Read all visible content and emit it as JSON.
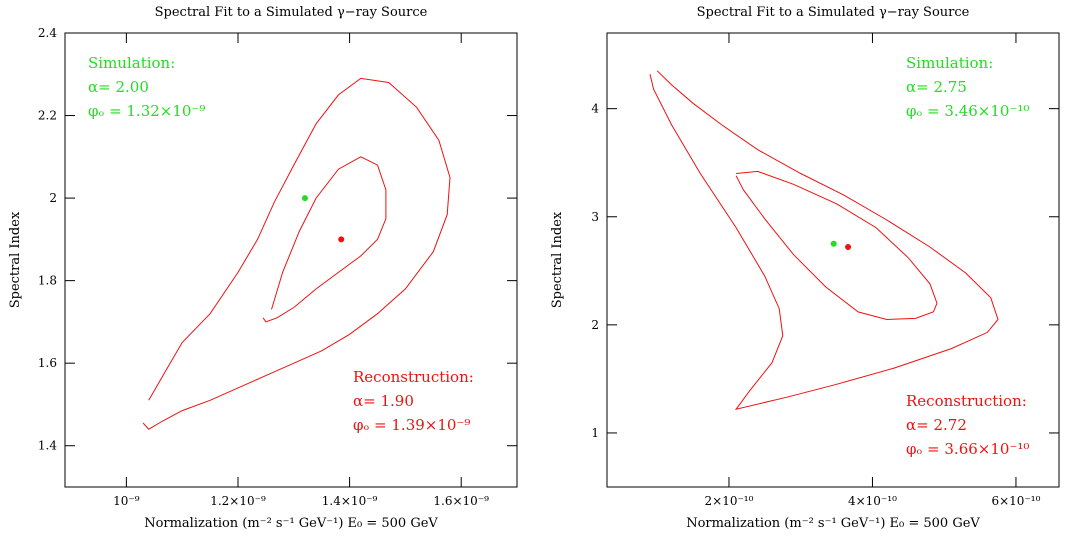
{
  "chart_data": [
    {
      "type": "line",
      "title": "Spectral Fit to a Simulated γ−ray Source",
      "xlabel": "Normalization (m⁻² s⁻¹ GeV⁻¹)   E₀ = 500 GeV",
      "ylabel": "Spectral Index",
      "xlim": [
        8.9e-10,
        1.7e-09
      ],
      "ylim": [
        1.3,
        2.4
      ],
      "xticks": [
        {
          "value": 1e-09,
          "label": "10⁻⁹"
        },
        {
          "value": 1.2e-09,
          "label": "1.2×10⁻⁹"
        },
        {
          "value": 1.4e-09,
          "label": "1.4×10⁻⁹"
        },
        {
          "value": 1.6e-09,
          "label": "1.6×10⁻⁹"
        }
      ],
      "yticks": [
        {
          "value": 1.4,
          "label": "1.4"
        },
        {
          "value": 1.6,
          "label": "1.6"
        },
        {
          "value": 1.8,
          "label": "1.8"
        },
        {
          "value": 2.0,
          "label": "2"
        },
        {
          "value": 2.2,
          "label": "2.2"
        },
        {
          "value": 2.4,
          "label": "2.4"
        }
      ],
      "simulation": {
        "label": "Simulation:",
        "alpha_text": "α= 2.00",
        "phi_text": "φₒ = 1.32×10⁻⁹",
        "x": 1.32e-09,
        "y": 2.0,
        "color": "#22dd22"
      },
      "reconstruction": {
        "label": "Reconstruction:",
        "alpha_text": "α= 1.90",
        "phi_text": "φₒ = 1.39×10⁻⁹",
        "x": 1.385e-09,
        "y": 1.9,
        "color": "#ee1111"
      },
      "contours": [
        {
          "x": [
            1.04e-09,
            1.07e-09,
            1.1e-09,
            1.15e-09,
            1.2e-09,
            1.235e-09,
            1.265e-09,
            1.3e-09,
            1.34e-09,
            1.38e-09,
            1.42e-09,
            1.47e-09,
            1.52e-09,
            1.56e-09,
            1.58e-09,
            1.575e-09,
            1.55e-09,
            1.5e-09,
            1.45e-09,
            1.4e-09,
            1.35e-09,
            1.3e-09,
            1.25e-09,
            1.2e-09,
            1.15e-09,
            1.1e-09,
            1.065e-09,
            1.04e-09,
            1.03e-09
          ],
          "y": [
            1.51,
            1.58,
            1.65,
            1.72,
            1.82,
            1.9,
            1.99,
            2.08,
            2.18,
            2.25,
            2.29,
            2.28,
            2.22,
            2.14,
            2.05,
            1.96,
            1.87,
            1.78,
            1.72,
            1.67,
            1.63,
            1.6,
            1.57,
            1.54,
            1.51,
            1.485,
            1.46,
            1.44,
            1.455
          ]
        },
        {
          "x": [
            1.26e-09,
            1.28e-09,
            1.31e-09,
            1.34e-09,
            1.38e-09,
            1.42e-09,
            1.45e-09,
            1.465e-09,
            1.465e-09,
            1.45e-09,
            1.42e-09,
            1.38e-09,
            1.34e-09,
            1.3e-09,
            1.27e-09,
            1.25e-09,
            1.245e-09
          ],
          "y": [
            1.73,
            1.82,
            1.92,
            2.0,
            2.07,
            2.1,
            2.08,
            2.02,
            1.95,
            1.9,
            1.86,
            1.82,
            1.78,
            1.735,
            1.71,
            1.7,
            1.71
          ]
        }
      ]
    },
    {
      "type": "line",
      "title": "Spectral Fit to a Simulated γ−ray Source",
      "xlabel": "Normalization (m⁻² s⁻¹ GeV⁻¹)   E₀ = 500 GeV",
      "ylabel": "Spectral Index",
      "xlim": [
        3e-11,
        6.6e-10
      ],
      "ylim": [
        0.5,
        4.7
      ],
      "xticks": [
        {
          "value": 2e-10,
          "label": "2×10⁻¹⁰"
        },
        {
          "value": 4e-10,
          "label": "4×10⁻¹⁰"
        },
        {
          "value": 6e-10,
          "label": "6×10⁻¹⁰"
        }
      ],
      "yticks": [
        {
          "value": 1,
          "label": "1"
        },
        {
          "value": 2,
          "label": "2"
        },
        {
          "value": 3,
          "label": "3"
        },
        {
          "value": 4,
          "label": "4"
        }
      ],
      "simulation": {
        "label": "Simulation:",
        "alpha_text": "α= 2.75",
        "phi_text": "φₒ = 3.46×10⁻¹⁰",
        "x": 3.46e-10,
        "y": 2.75,
        "color": "#22dd22"
      },
      "reconstruction": {
        "label": "Reconstruction:",
        "alpha_text": "α= 2.72",
        "phi_text": "φₒ = 3.66×10⁻¹⁰",
        "x": 3.66e-10,
        "y": 2.72,
        "color": "#ee1111"
      },
      "contours": [
        {
          "x": [
            1e-10,
            1.2e-10,
            1.5e-10,
            1.9e-10,
            2.4e-10,
            3e-10,
            3.6e-10,
            4.2e-10,
            4.8e-10,
            5.3e-10,
            5.65e-10,
            5.75e-10,
            5.6e-10,
            5.1e-10,
            4.3e-10,
            3.5e-10,
            2.8e-10,
            2.1e-10,
            2.3e-10,
            2.6e-10,
            2.75e-10,
            2.7e-10,
            2.5e-10,
            2.1e-10,
            1.6e-10,
            1.2e-10,
            9.5e-11,
            9e-11
          ],
          "y": [
            4.35,
            4.22,
            4.05,
            3.85,
            3.62,
            3.4,
            3.2,
            2.97,
            2.72,
            2.48,
            2.25,
            2.05,
            1.93,
            1.78,
            1.6,
            1.45,
            1.33,
            1.22,
            1.4,
            1.65,
            1.9,
            2.15,
            2.45,
            2.9,
            3.4,
            3.85,
            4.18,
            4.32
          ]
        },
        {
          "x": [
            2.1e-10,
            2.4e-10,
            2.9e-10,
            3.5e-10,
            4.05e-10,
            4.5e-10,
            4.8e-10,
            4.9e-10,
            4.85e-10,
            4.6e-10,
            4.2e-10,
            3.8e-10,
            3.35e-10,
            2.9e-10,
            2.5e-10,
            2.2e-10,
            2.1e-10
          ],
          "y": [
            3.4,
            3.42,
            3.3,
            3.12,
            2.9,
            2.62,
            2.38,
            2.2,
            2.12,
            2.06,
            2.05,
            2.12,
            2.35,
            2.65,
            2.98,
            3.25,
            3.38
          ]
        }
      ]
    }
  ]
}
